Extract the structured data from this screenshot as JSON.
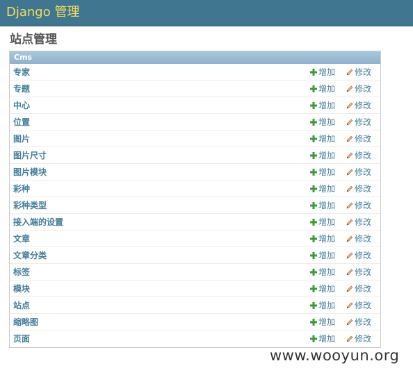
{
  "header": {
    "branding": "Django 管理"
  },
  "page": {
    "title": "站点管理"
  },
  "module": {
    "caption": "Cms",
    "add_label": "增加",
    "change_label": "修改",
    "rows": [
      {
        "label": "专家"
      },
      {
        "label": "专题"
      },
      {
        "label": "中心"
      },
      {
        "label": "位置"
      },
      {
        "label": "图片"
      },
      {
        "label": "图片尺寸"
      },
      {
        "label": "图片模块"
      },
      {
        "label": "彩种"
      },
      {
        "label": "彩种类型"
      },
      {
        "label": "接入端的设置"
      },
      {
        "label": "文章"
      },
      {
        "label": "文章分类"
      },
      {
        "label": "标签"
      },
      {
        "label": "模块"
      },
      {
        "label": "站点"
      },
      {
        "label": "缩略图"
      },
      {
        "label": "页面"
      }
    ]
  },
  "watermark": "www.wooyun.org",
  "colors": {
    "header_bg": "#417690",
    "branding": "#f5dd5d",
    "link": "#447e9b",
    "add_icon": "#3a9b3a",
    "change_icon": "#d97a4a"
  },
  "icons": {
    "add": "add-icon",
    "change": "pencil-icon"
  }
}
